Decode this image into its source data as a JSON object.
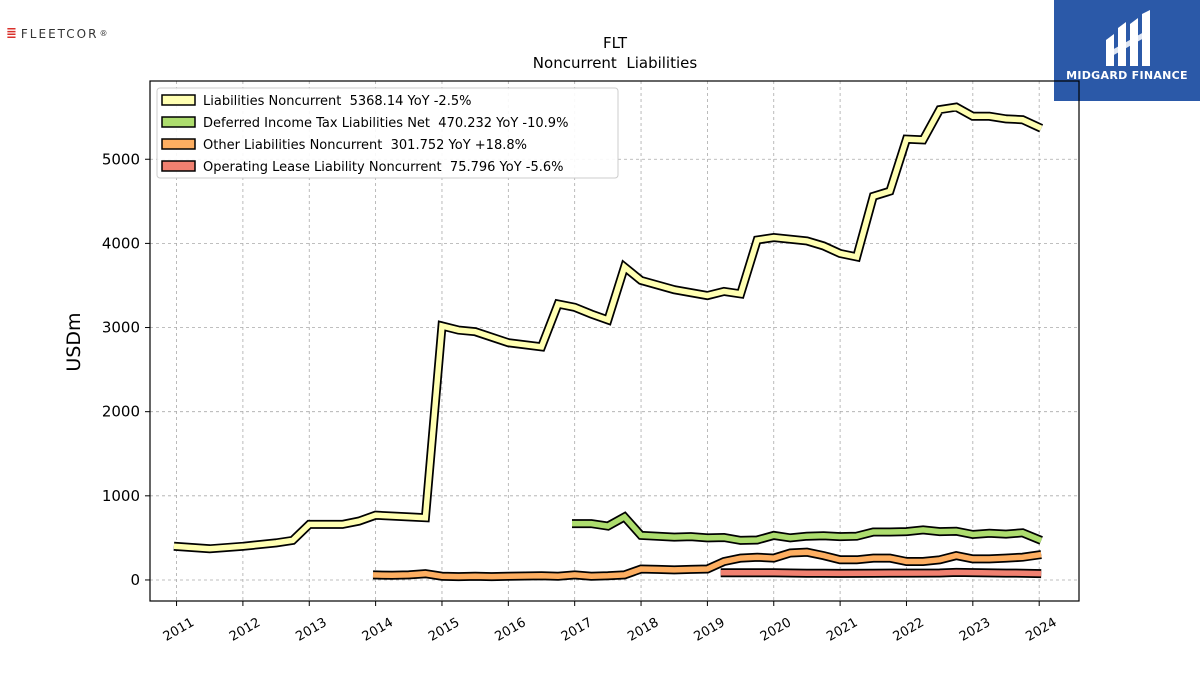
{
  "logos": {
    "left": {
      "mark": "≣",
      "text": "FLEETCOR",
      "tm": "®"
    },
    "right": {
      "text": "MIDGARD FINANCE",
      "background": "#2b59a8"
    }
  },
  "chart_data": {
    "type": "line",
    "title": "FLT",
    "subtitle": "Noncurrent  Liabilities",
    "ylabel": "USDm",
    "xlabel": "",
    "xlim": [
      2010.6,
      2024.6
    ],
    "ylim": [
      -250,
      5930
    ],
    "yticks": [
      0,
      1000,
      2000,
      3000,
      4000,
      5000
    ],
    "xticks": [
      "2011",
      "2012",
      "2013",
      "2014",
      "2015",
      "2016",
      "2017",
      "2018",
      "2019",
      "2020",
      "2021",
      "2022",
      "2023",
      "2024"
    ],
    "grid": true,
    "legend_position": "top-left",
    "series": [
      {
        "name": "Liabilities Noncurrent",
        "legend": "Liabilities Noncurrent  5368.14 YoY -2.5%",
        "color": "#ffffb2",
        "x": [
          2010.96,
          2011.5,
          2012.0,
          2012.5,
          2012.75,
          2013.0,
          2013.5,
          2013.75,
          2014.0,
          2014.5,
          2014.75,
          2015.0,
          2015.25,
          2015.5,
          2016.0,
          2016.5,
          2016.75,
          2017.0,
          2017.25,
          2017.5,
          2017.75,
          2018.0,
          2018.5,
          2019.0,
          2019.25,
          2019.5,
          2019.75,
          2020.0,
          2020.5,
          2020.75,
          2021.0,
          2021.25,
          2021.5,
          2021.75,
          2022.0,
          2022.25,
          2022.5,
          2022.75,
          2023.0,
          2023.25,
          2023.5,
          2023.75,
          2024.03
        ],
        "y": [
          400,
          370,
          400,
          440,
          470,
          660,
          660,
          700,
          770,
          750,
          740,
          3020,
          2970,
          2950,
          2820,
          2770,
          3280,
          3240,
          3160,
          3090,
          3720,
          3560,
          3450,
          3380,
          3430,
          3400,
          4040,
          4070,
          4030,
          3970,
          3880,
          3840,
          4560,
          4620,
          5240,
          5230,
          5590,
          5620,
          5510,
          5510,
          5480,
          5470,
          5368
        ]
      },
      {
        "name": "Deferred Income Tax Liabilities Net",
        "legend": "Deferred Income Tax Liabilities Net  470.232 YoY -10.9%",
        "color": "#addd6e",
        "x": [
          2016.96,
          2017.25,
          2017.5,
          2017.75,
          2018.0,
          2018.5,
          2018.75,
          2019.0,
          2019.25,
          2019.5,
          2019.75,
          2020.0,
          2020.25,
          2020.5,
          2020.75,
          2021.0,
          2021.25,
          2021.5,
          2021.75,
          2022.0,
          2022.25,
          2022.5,
          2022.75,
          2023.0,
          2023.25,
          2023.5,
          2023.75,
          2024.03
        ],
        "y": [
          670,
          670,
          640,
          750,
          530,
          510,
          515,
          500,
          505,
          470,
          475,
          530,
          500,
          520,
          525,
          515,
          520,
          570,
          570,
          575,
          595,
          575,
          580,
          540,
          555,
          545,
          560,
          470
        ]
      },
      {
        "name": "Other Liabilities Noncurrent",
        "legend": "Other Liabilities Noncurrent  301.752 YoY +18.8%",
        "color": "#fdae61",
        "x": [
          2013.96,
          2014.25,
          2014.5,
          2014.75,
          2015.0,
          2015.25,
          2015.5,
          2015.75,
          2016.0,
          2016.5,
          2016.75,
          2017.0,
          2017.25,
          2017.5,
          2017.75,
          2018.0,
          2018.25,
          2018.5,
          2018.75,
          2019.0,
          2019.25,
          2019.5,
          2019.75,
          2020.0,
          2020.25,
          2020.5,
          2020.75,
          2021.0,
          2021.25,
          2021.5,
          2021.75,
          2022.0,
          2022.25,
          2022.5,
          2022.75,
          2023.0,
          2023.25,
          2023.5,
          2023.75,
          2024.03
        ],
        "y": [
          60,
          55,
          60,
          75,
          45,
          40,
          45,
          40,
          45,
          50,
          45,
          60,
          45,
          50,
          60,
          130,
          125,
          120,
          125,
          130,
          220,
          260,
          270,
          260,
          320,
          330,
          290,
          240,
          240,
          260,
          260,
          220,
          220,
          240,
          290,
          250,
          250,
          260,
          270,
          301
        ]
      },
      {
        "name": "Operating Lease Liability Noncurrent",
        "legend": "Operating Lease Liability Noncurrent  75.796 YoY -5.6%",
        "color": "#f08070",
        "x": [
          2019.2,
          2019.5,
          2019.75,
          2020.0,
          2020.5,
          2020.75,
          2021.0,
          2021.5,
          2022.0,
          2022.5,
          2022.75,
          2023.0,
          2023.5,
          2023.75,
          2024.03
        ],
        "y": [
          85,
          85,
          85,
          85,
          80,
          80,
          78,
          80,
          82,
          83,
          90,
          88,
          82,
          80,
          76
        ]
      }
    ]
  }
}
